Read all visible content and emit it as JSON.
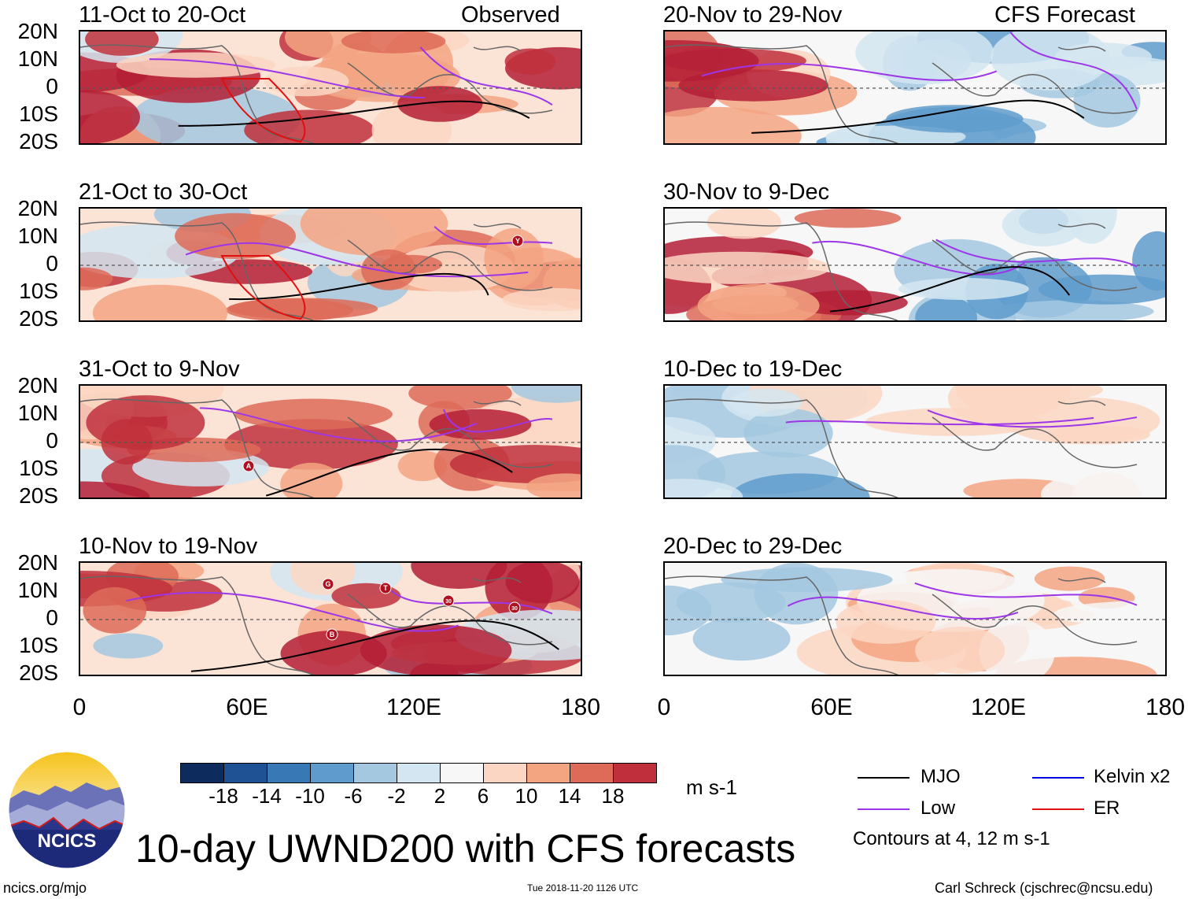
{
  "header": {
    "left_label": "Observed",
    "right_label": "CFS Forecast"
  },
  "observed_panels": [
    {
      "title": "11-Oct to 20-Oct"
    },
    {
      "title": "21-Oct to 30-Oct"
    },
    {
      "title": "31-Oct to 9-Nov"
    },
    {
      "title": "10-Nov to 19-Nov"
    }
  ],
  "forecast_panels": [
    {
      "title": "20-Nov to 29-Nov"
    },
    {
      "title": "30-Nov to 9-Dec"
    },
    {
      "title": "10-Dec to 19-Dec"
    },
    {
      "title": "20-Dec to 29-Dec"
    }
  ],
  "lat_labels": [
    "20N",
    "10N",
    "0",
    "10S",
    "20S"
  ],
  "lon_labels": [
    "0",
    "60E",
    "120E",
    "180"
  ],
  "storm_markers": [
    {
      "panel": "21-Oct to 30-Oct",
      "label": "Y"
    },
    {
      "panel": "31-Oct to 9-Nov",
      "label": "A"
    },
    {
      "panel": "10-Nov to 19-Nov",
      "label": "G"
    },
    {
      "panel": "10-Nov to 19-Nov",
      "label": "T"
    },
    {
      "panel": "10-Nov to 19-Nov",
      "label": "30"
    },
    {
      "panel": "10-Nov to 19-Nov",
      "label": "30"
    },
    {
      "panel": "10-Nov to 19-Nov",
      "label": "B"
    }
  ],
  "colorbar": {
    "colors": [
      "#0d2b5c",
      "#1f5295",
      "#3878b4",
      "#5f9ccd",
      "#a3c8e0",
      "#d3e6f1",
      "#f7f7f7",
      "#fbd7c3",
      "#f3a582",
      "#dd6b58",
      "#c0303c",
      "#b41f36",
      "#6b0d20"
    ],
    "tick_labels": [
      "-18",
      "-14",
      "-10",
      "-6",
      "-2",
      "2",
      "6",
      "10",
      "14",
      "18"
    ],
    "units": "m s-1"
  },
  "legend": {
    "items": [
      {
        "name": "MJO",
        "color": "#000000"
      },
      {
        "name": "Kelvin x2",
        "color": "#0000e0"
      },
      {
        "name": "Low",
        "color": "#9d36e8"
      },
      {
        "name": "ER",
        "color": "#e01010"
      }
    ],
    "note": "Contours at 4, 12 m s-1"
  },
  "main_title": "10-day UWND200 with CFS forecasts",
  "logo_text": "NCICS",
  "footer": {
    "url": "ncics.org/mjo",
    "timestamp": "Tue 2018-11-20 1126 UTC",
    "author": "Carl Schreck (cjschrec@ncsu.edu)"
  }
}
